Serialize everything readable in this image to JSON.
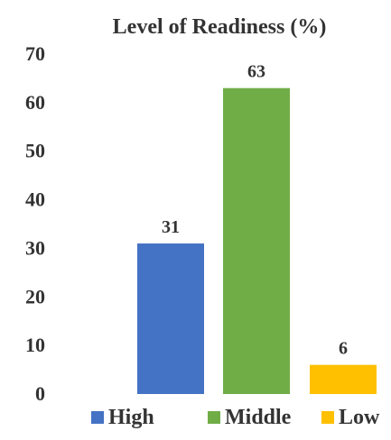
{
  "chart_data": {
    "type": "bar",
    "title": "Level of Readiness (%)",
    "xlabel": "",
    "ylabel": "",
    "categories": [
      "High",
      "Middle",
      "Low"
    ],
    "values": [
      31,
      63,
      6
    ],
    "colors": [
      "#4472C4",
      "#70AD47",
      "#FFC000"
    ],
    "ylim": [
      0,
      70
    ],
    "yticks": [
      "0",
      "10",
      "20",
      "30",
      "40",
      "50",
      "60",
      "70"
    ],
    "data_labels": [
      "31",
      "63",
      "6"
    ],
    "grid": false,
    "legend": {
      "position": "bottom",
      "entries": [
        "High",
        "Middle",
        "Low"
      ]
    }
  }
}
